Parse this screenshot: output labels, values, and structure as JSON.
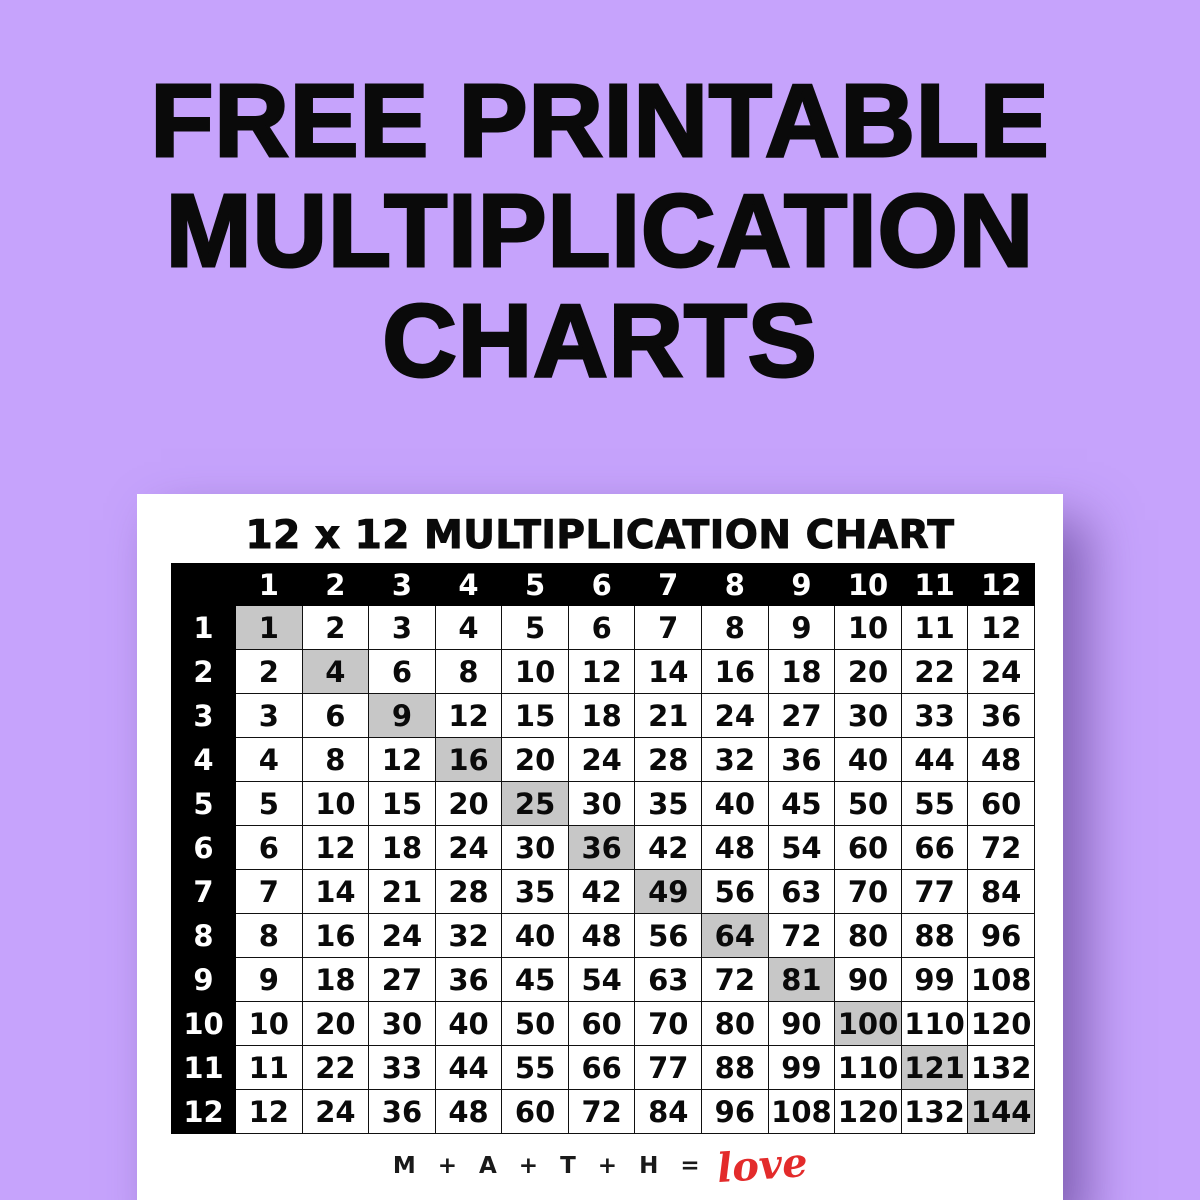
{
  "page": {
    "title": "FREE PRINTABLE\nMULTIPLICATION\nCHARTS",
    "background_color": "#c6a3fc"
  },
  "card": {
    "title": "12 x 12 MULTIPLICATION CHART",
    "footer": {
      "prefix": "M + A + T + H =",
      "script_word": "love",
      "script_color": "#e32b2b"
    }
  },
  "chart_data": {
    "type": "table",
    "title": "12 x 12 MULTIPLICATION CHART",
    "column_headers": [
      1,
      2,
      3,
      4,
      5,
      6,
      7,
      8,
      9,
      10,
      11,
      12
    ],
    "row_headers": [
      1,
      2,
      3,
      4,
      5,
      6,
      7,
      8,
      9,
      10,
      11,
      12
    ],
    "values": [
      [
        1,
        2,
        3,
        4,
        5,
        6,
        7,
        8,
        9,
        10,
        11,
        12
      ],
      [
        2,
        4,
        6,
        8,
        10,
        12,
        14,
        16,
        18,
        20,
        22,
        24
      ],
      [
        3,
        6,
        9,
        12,
        15,
        18,
        21,
        24,
        27,
        30,
        33,
        36
      ],
      [
        4,
        8,
        12,
        16,
        20,
        24,
        28,
        32,
        36,
        40,
        44,
        48
      ],
      [
        5,
        10,
        15,
        20,
        25,
        30,
        35,
        40,
        45,
        50,
        55,
        60
      ],
      [
        6,
        12,
        18,
        24,
        30,
        36,
        42,
        48,
        54,
        60,
        66,
        72
      ],
      [
        7,
        14,
        21,
        28,
        35,
        42,
        49,
        56,
        63,
        70,
        77,
        84
      ],
      [
        8,
        16,
        24,
        32,
        40,
        48,
        56,
        64,
        72,
        80,
        88,
        96
      ],
      [
        9,
        18,
        27,
        36,
        45,
        54,
        63,
        72,
        81,
        90,
        99,
        108
      ],
      [
        10,
        20,
        30,
        40,
        50,
        60,
        70,
        80,
        90,
        100,
        110,
        120
      ],
      [
        11,
        22,
        33,
        44,
        55,
        66,
        77,
        88,
        99,
        110,
        121,
        132
      ],
      [
        12,
        24,
        36,
        48,
        60,
        72,
        84,
        96,
        108,
        120,
        132,
        144
      ]
    ],
    "highlight_rule": "diagonal perfect squares shaded",
    "highlight_color": "#c7c7c7",
    "header_bg": "#000000",
    "header_text_color": "#ffffff"
  }
}
